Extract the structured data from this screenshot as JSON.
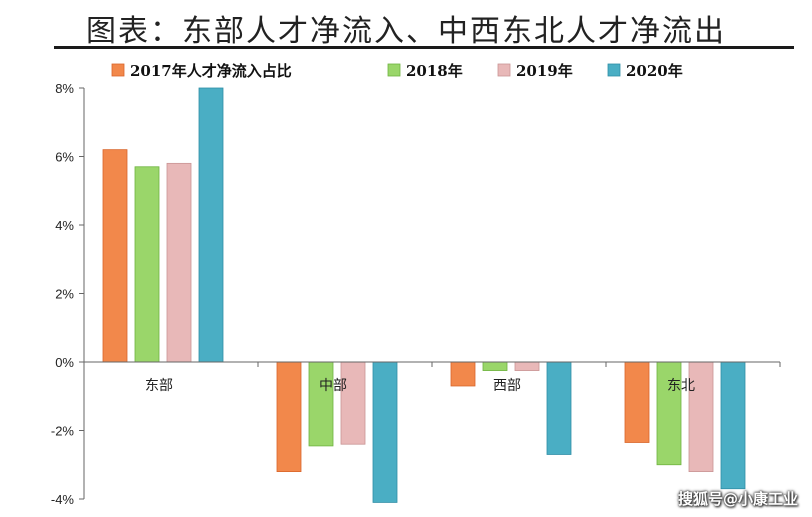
{
  "header": {
    "title": "图表：东部人才净流入、中西东北人才净流出"
  },
  "watermark": "搜狐号@小康工业",
  "colors": {
    "series": [
      "#f2884b",
      "#9ad66a",
      "#e8b8b8",
      "#4aaec4"
    ],
    "series_stroke": [
      "#d9652a",
      "#6fb340",
      "#c99494",
      "#2f8ea6"
    ]
  },
  "chart_data": {
    "type": "bar",
    "title": "东部人才净流入、中西东北人才净流出",
    "categories": [
      "东部",
      "中部",
      "西部",
      "东北"
    ],
    "series": [
      {
        "name": "2017年人才净流入占比",
        "values": [
          6.2,
          -3.2,
          -0.7,
          -2.35
        ]
      },
      {
        "name": "2018年",
        "values": [
          5.7,
          -2.45,
          -0.25,
          -3.0
        ]
      },
      {
        "name": "2019年",
        "values": [
          5.8,
          -2.4,
          -0.25,
          -3.2
        ]
      },
      {
        "name": "2020年",
        "values": [
          8.0,
          -4.1,
          -2.7,
          -3.7
        ]
      }
    ],
    "ylim": [
      -4,
      8
    ],
    "yticks": [
      "8%",
      "6%",
      "4%",
      "2%",
      "0%",
      "-2%",
      "-4%"
    ],
    "ytick_values": [
      8,
      6,
      4,
      2,
      0,
      -2,
      -4
    ],
    "legend_position": "top",
    "grid": false,
    "xlabel": "",
    "ylabel": ""
  }
}
